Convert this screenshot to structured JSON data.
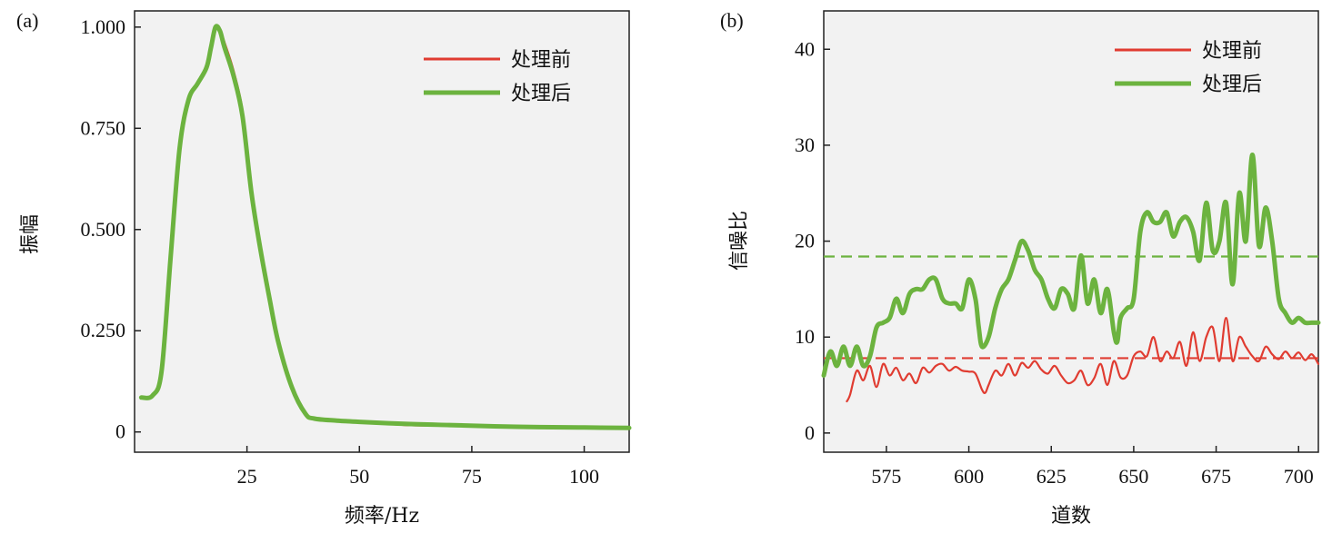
{
  "chart_data": [
    {
      "panel_label": "(a)",
      "type": "line",
      "xlabel": "频率/Hz",
      "ylabel": "振幅",
      "xlim": [
        0,
        110
      ],
      "ylim": [
        -0.05,
        1.04
      ],
      "xticks": [
        {
          "value": 25,
          "label": "25"
        },
        {
          "value": 50,
          "label": "50"
        },
        {
          "value": 75,
          "label": "75"
        },
        {
          "value": 100,
          "label": "100"
        }
      ],
      "yticks": [
        {
          "value": 0,
          "label": "0"
        },
        {
          "value": 0.25,
          "label": "0.250"
        },
        {
          "value": 0.5,
          "label": "0.500"
        },
        {
          "value": 0.75,
          "label": "0.750"
        },
        {
          "value": 1.0,
          "label": "1.000"
        }
      ],
      "legend_position": "top-right",
      "grid": false,
      "series": [
        {
          "name": "处理前",
          "color": "#e03c31",
          "x": [
            1.5,
            4,
            6,
            8,
            10,
            12,
            14,
            16,
            17,
            18,
            19,
            20,
            22,
            24,
            26,
            28,
            30,
            32,
            35,
            38,
            40,
            45,
            50,
            60,
            70,
            80,
            90,
            100,
            110
          ],
          "y": [
            0.085,
            0.09,
            0.15,
            0.43,
            0.7,
            0.82,
            0.86,
            0.9,
            0.95,
            1.0,
            0.99,
            0.96,
            0.89,
            0.79,
            0.6,
            0.45,
            0.33,
            0.22,
            0.11,
            0.045,
            0.033,
            0.028,
            0.025,
            0.018,
            0.016,
            0.013,
            0.012,
            0.011,
            0.01
          ]
        },
        {
          "name": "处理后",
          "color": "#6cb33f",
          "x": [
            1.5,
            4,
            6,
            8,
            10,
            12,
            14,
            16,
            17,
            18,
            19,
            20,
            22,
            24,
            26,
            28,
            30,
            32,
            35,
            38,
            40,
            45,
            50,
            60,
            70,
            80,
            90,
            100,
            110
          ],
          "y": [
            0.085,
            0.09,
            0.15,
            0.43,
            0.7,
            0.82,
            0.86,
            0.9,
            0.95,
            1.0,
            0.99,
            0.95,
            0.88,
            0.78,
            0.59,
            0.45,
            0.33,
            0.22,
            0.11,
            0.045,
            0.033,
            0.028,
            0.025,
            0.02,
            0.017,
            0.014,
            0.012,
            0.011,
            0.01
          ]
        }
      ]
    },
    {
      "panel_label": "(b)",
      "type": "line",
      "xlabel": "道数",
      "ylabel": "信噪比",
      "xlim": [
        556,
        706
      ],
      "ylim": [
        -2,
        44
      ],
      "xticks": [
        {
          "value": 575,
          "label": "575"
        },
        {
          "value": 600,
          "label": "600"
        },
        {
          "value": 625,
          "label": "625"
        },
        {
          "value": 650,
          "label": "650"
        },
        {
          "value": 675,
          "label": "675"
        },
        {
          "value": 700,
          "label": "700"
        }
      ],
      "yticks": [
        {
          "value": 0,
          "label": "0"
        },
        {
          "value": 10,
          "label": "10"
        },
        {
          "value": 20,
          "label": "20"
        },
        {
          "value": 30,
          "label": "30"
        },
        {
          "value": 40,
          "label": "40"
        }
      ],
      "legend_position": "top-right",
      "grid": false,
      "series": [
        {
          "name": "处理前",
          "color": "#e03c31",
          "x": [
            563,
            564,
            566,
            568,
            570,
            572,
            574,
            576,
            578,
            580,
            582,
            584,
            586,
            588,
            590,
            592,
            594,
            596,
            598,
            600,
            602,
            604,
            605,
            606,
            608,
            610,
            612,
            614,
            616,
            618,
            620,
            622,
            624,
            626,
            628,
            630,
            632,
            634,
            636,
            638,
            640,
            642,
            644,
            646,
            648,
            650,
            652,
            654,
            656,
            658,
            660,
            662,
            664,
            666,
            668,
            670,
            672,
            674,
            676,
            678,
            680,
            682,
            684,
            686,
            688,
            690,
            692,
            694,
            696,
            698,
            700,
            702,
            704,
            706
          ],
          "y": [
            3.3,
            4.0,
            6.5,
            5.5,
            7.0,
            4.8,
            7.2,
            6.0,
            6.8,
            5.5,
            6.2,
            5.2,
            6.8,
            6.3,
            7.0,
            7.2,
            6.5,
            6.9,
            6.5,
            6.4,
            6.2,
            4.5,
            4.2,
            5.0,
            6.5,
            6.0,
            7.2,
            6.0,
            7.3,
            6.8,
            7.5,
            6.6,
            6.2,
            7.0,
            6.0,
            5.2,
            5.5,
            6.5,
            5.0,
            5.7,
            7.2,
            5.0,
            7.5,
            5.8,
            6.0,
            8.0,
            8.5,
            8.0,
            10.0,
            7.5,
            8.5,
            7.8,
            9.5,
            7.0,
            10.5,
            7.5,
            10.0,
            11.0,
            7.5,
            12.0,
            7.5,
            10.0,
            9.0,
            8.0,
            7.5,
            9.0,
            8.2,
            7.7,
            8.5,
            7.8,
            8.4,
            7.6,
            8.2,
            7.2
          ]
        },
        {
          "name": "处理后",
          "color": "#6cb33f",
          "x": [
            556,
            558,
            560,
            562,
            564,
            566,
            568,
            570,
            572,
            574,
            576,
            578,
            580,
            582,
            584,
            586,
            588,
            590,
            592,
            594,
            596,
            598,
            600,
            602,
            603,
            604,
            606,
            608,
            610,
            612,
            614,
            616,
            618,
            620,
            622,
            624,
            626,
            628,
            630,
            632,
            634,
            636,
            638,
            640,
            642,
            644,
            645,
            646,
            648,
            650,
            652,
            654,
            656,
            658,
            660,
            662,
            664,
            666,
            668,
            670,
            672,
            674,
            676,
            678,
            680,
            682,
            684,
            686,
            688,
            690,
            692,
            694,
            696,
            698,
            700,
            702,
            704,
            706
          ],
          "y": [
            6.0,
            8.5,
            7.0,
            9.0,
            7.0,
            9.0,
            7.0,
            8.0,
            11.0,
            11.5,
            12.0,
            14.0,
            12.5,
            14.5,
            15.0,
            15.0,
            16.0,
            16.0,
            14.0,
            13.5,
            13.5,
            13.0,
            16.0,
            14.0,
            11.0,
            9.0,
            10.0,
            13.0,
            15.0,
            16.0,
            18.0,
            20.0,
            19.0,
            17.0,
            16.0,
            14.0,
            13.0,
            15.0,
            14.5,
            13.0,
            18.5,
            13.5,
            16.0,
            12.5,
            15.0,
            10.5,
            9.5,
            12.0,
            13.0,
            14.0,
            21.0,
            23.0,
            22.0,
            22.0,
            23.0,
            20.5,
            22.0,
            22.5,
            21.0,
            18.0,
            24.0,
            19.0,
            20.0,
            24.0,
            15.5,
            25.0,
            20.0,
            29.0,
            19.5,
            23.5,
            20.0,
            14.0,
            12.5,
            11.5,
            12.0,
            11.5,
            11.5,
            11.5
          ]
        }
      ],
      "reference_lines": [
        {
          "series": "处理前",
          "y": 7.8,
          "style": "dashed",
          "color": "#e03c31"
        },
        {
          "series": "处理后",
          "y": 18.4,
          "style": "dashed",
          "color": "#6cb33f"
        }
      ]
    }
  ]
}
